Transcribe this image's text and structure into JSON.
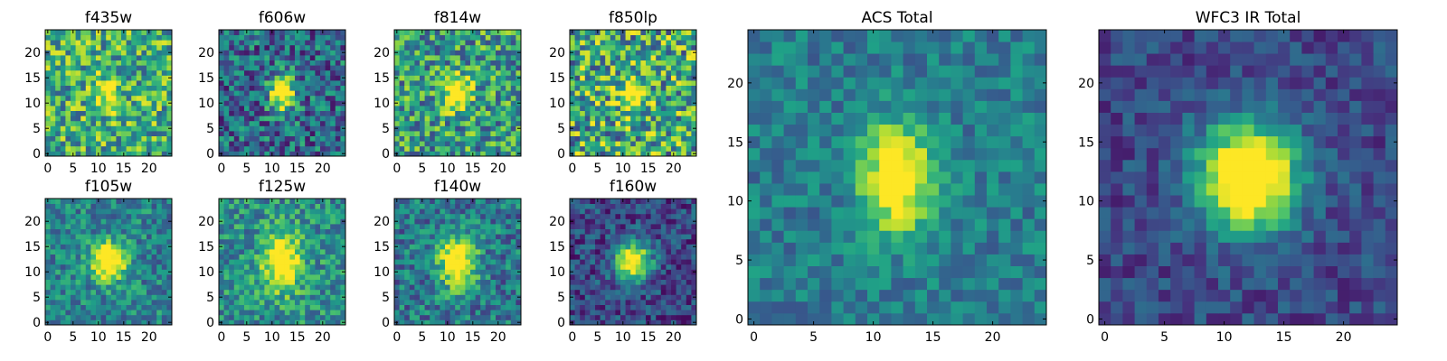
{
  "chart_data": [
    {
      "type": "heatmap",
      "title": "f435w",
      "xlim": [
        0,
        24
      ],
      "ylim": [
        0,
        24
      ],
      "xticks": [
        "0",
        "5",
        "10",
        "15",
        "20"
      ],
      "yticks": [
        "0",
        "5",
        "10",
        "15",
        "20"
      ],
      "peak": [
        12,
        12
      ],
      "sigma": 1.6,
      "amp": 0.28,
      "background": 0.62,
      "noise": 0.34,
      "elong": 0.55,
      "seed": 11
    },
    {
      "type": "heatmap",
      "title": "f606w",
      "xlim": [
        0,
        24
      ],
      "ylim": [
        0,
        24
      ],
      "xticks": [
        "0",
        "5",
        "10",
        "15",
        "20"
      ],
      "yticks": [
        "0",
        "5",
        "10",
        "15",
        "20"
      ],
      "peak": [
        12,
        12
      ],
      "sigma": 1.7,
      "amp": 0.55,
      "background": 0.35,
      "noise": 0.3,
      "elong": 0.45,
      "seed": 23
    },
    {
      "type": "heatmap",
      "title": "f814w",
      "xlim": [
        0,
        24
      ],
      "ylim": [
        0,
        24
      ],
      "xticks": [
        "0",
        "5",
        "10",
        "15",
        "20"
      ],
      "yticks": [
        "0",
        "5",
        "10",
        "15",
        "20"
      ],
      "peak": [
        12,
        12
      ],
      "sigma": 1.8,
      "amp": 0.45,
      "background": 0.55,
      "noise": 0.34,
      "elong": 0.3,
      "seed": 37
    },
    {
      "type": "heatmap",
      "title": "f850lp",
      "xlim": [
        0,
        24
      ],
      "ylim": [
        0,
        24
      ],
      "xticks": [
        "0",
        "5",
        "10",
        "15",
        "20"
      ],
      "yticks": [
        "0",
        "5",
        "10",
        "15",
        "20"
      ],
      "peak": [
        12,
        12
      ],
      "sigma": 1.9,
      "amp": 0.35,
      "background": 0.6,
      "noise": 0.4,
      "elong": 0.2,
      "seed": 41
    },
    {
      "type": "heatmap",
      "title": "f105w",
      "xlim": [
        0,
        24
      ],
      "ylim": [
        0,
        24
      ],
      "xticks": [
        "0",
        "5",
        "10",
        "15",
        "20"
      ],
      "yticks": [
        "0",
        "5",
        "10",
        "15",
        "20"
      ],
      "peak": [
        12,
        12
      ],
      "sigma": 2.4,
      "amp": 0.5,
      "background": 0.45,
      "noise": 0.22,
      "elong": 0.1,
      "seed": 53
    },
    {
      "type": "heatmap",
      "title": "f125w",
      "xlim": [
        0,
        24
      ],
      "ylim": [
        0,
        24
      ],
      "xticks": [
        "0",
        "5",
        "10",
        "15",
        "20"
      ],
      "yticks": [
        "0",
        "5",
        "10",
        "15",
        "20"
      ],
      "peak": [
        12,
        12
      ],
      "sigma": 2.6,
      "amp": 0.45,
      "background": 0.5,
      "noise": 0.24,
      "elong": 0.5,
      "seed": 67
    },
    {
      "type": "heatmap",
      "title": "f140w",
      "xlim": [
        0,
        24
      ],
      "ylim": [
        0,
        24
      ],
      "xticks": [
        "0",
        "5",
        "10",
        "15",
        "20"
      ],
      "yticks": [
        "0",
        "5",
        "10",
        "15",
        "20"
      ],
      "peak": [
        12,
        12
      ],
      "sigma": 2.6,
      "amp": 0.5,
      "background": 0.4,
      "noise": 0.24,
      "elong": 0.4,
      "seed": 71
    },
    {
      "type": "heatmap",
      "title": "f160w",
      "xlim": [
        0,
        24
      ],
      "ylim": [
        0,
        24
      ],
      "xticks": [
        "0",
        "5",
        "10",
        "15",
        "20"
      ],
      "yticks": [
        "0",
        "5",
        "10",
        "15",
        "20"
      ],
      "peak": [
        12,
        12
      ],
      "sigma": 2.4,
      "amp": 0.6,
      "background": 0.22,
      "noise": 0.2,
      "elong": 0.1,
      "seed": 83
    },
    {
      "type": "heatmap",
      "title": "ACS Total",
      "xlim": [
        0,
        24
      ],
      "ylim": [
        0,
        24
      ],
      "xticks": [
        "0",
        "5",
        "10",
        "15",
        "20"
      ],
      "yticks": [
        "0",
        "5",
        "10",
        "15",
        "20"
      ],
      "peak": [
        12,
        12
      ],
      "sigma": 2.0,
      "amp": 0.5,
      "background": 0.42,
      "noise": 0.16,
      "elong": 0.55,
      "seed": 97
    },
    {
      "type": "heatmap",
      "title": "WFC3 IR Total",
      "xlim": [
        0,
        24
      ],
      "ylim": [
        0,
        24
      ],
      "xticks": [
        "0",
        "5",
        "10",
        "15",
        "20"
      ],
      "yticks": [
        "0",
        "5",
        "10",
        "15",
        "20"
      ],
      "peak": [
        12,
        12
      ],
      "sigma": 2.8,
      "amp": 0.72,
      "background": 0.22,
      "noise": 0.14,
      "elong": 0.1,
      "seed": 113
    }
  ],
  "colormap": [
    "#440154",
    "#46327e",
    "#365c8d",
    "#277f8e",
    "#1fa187",
    "#4ac16d",
    "#a0da39",
    "#fde725"
  ]
}
